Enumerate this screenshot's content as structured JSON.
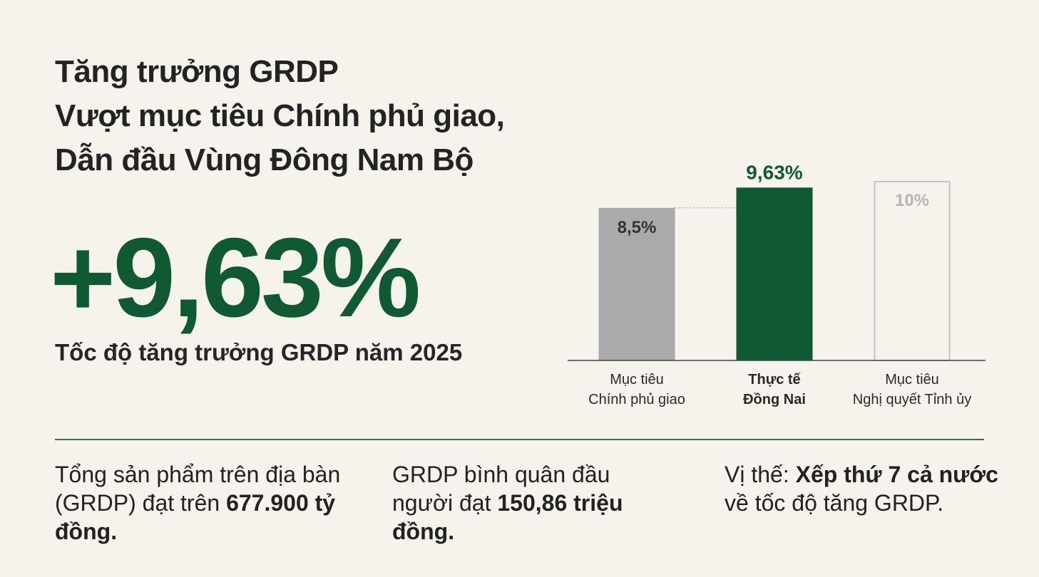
{
  "title": {
    "line1": "Tăng trưởng GRDP",
    "line2": "Vượt mục tiêu Chính phủ giao,",
    "line3": "Dẫn đầu Vùng Đông Nam Bộ"
  },
  "headline": {
    "value": "+9,63%",
    "caption": "Tốc độ tăng trưởng GRDP năm 2025"
  },
  "colors": {
    "accent": "#0f5a32",
    "gray_bar": "#aaaaaa",
    "outline_bar": "#c4c4c4",
    "background": "#f6f3ec"
  },
  "chart_data": {
    "type": "bar",
    "title": "",
    "xlabel": "",
    "ylabel": "",
    "ylim": [
      0,
      10
    ],
    "categories": [
      [
        "Mục tiêu",
        "Chính phủ giao"
      ],
      [
        "Thực tế",
        "Đồng Nai"
      ],
      [
        "Mục tiêu",
        "Nghị quyết Tỉnh ủy"
      ]
    ],
    "values": [
      8.5,
      9.63,
      10
    ],
    "value_labels": [
      "8,5%",
      "9,63%",
      "10%"
    ],
    "styles": [
      "gray",
      "green",
      "outline"
    ],
    "reference_line": 8.5
  },
  "stats": [
    {
      "text": "Tổng sản phẩm trên địa bàn (GRDP) đạt trên ",
      "bold": "677.900 tỷ đồng."
    },
    {
      "text": "GRDP bình quân đầu người đạt ",
      "bold": "150,86 triệu đồng."
    },
    {
      "text": "Vị thế: ",
      "bold": "Xếp thứ 7 cả nước",
      "text2": " về tốc độ tăng GRDP."
    }
  ]
}
